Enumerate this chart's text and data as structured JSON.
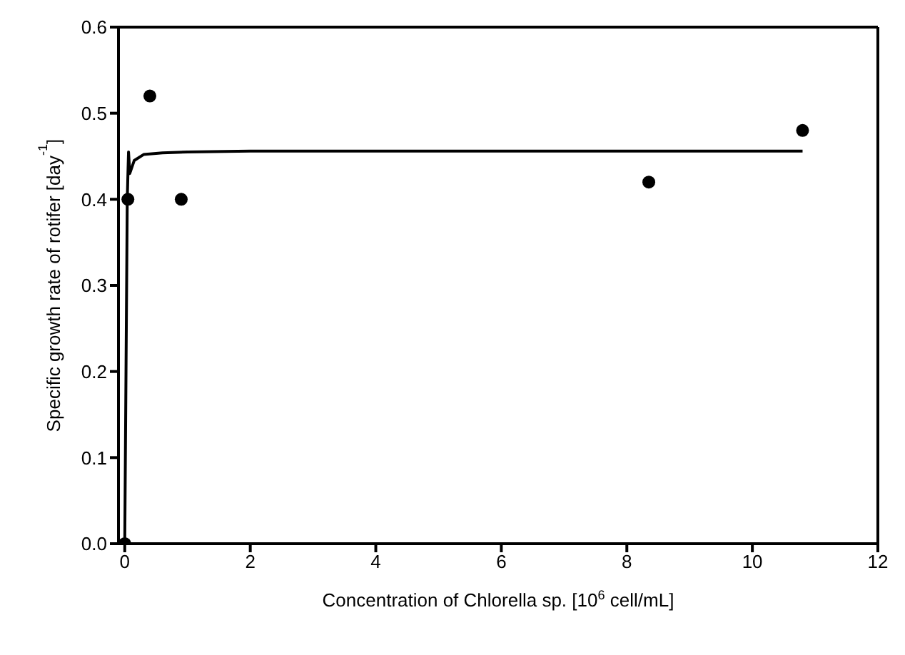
{
  "chart_data": {
    "type": "scatter",
    "xlabel": "Concentration of Chlorella sp. [10$^{6}$ cell/mL]",
    "ylabel": "Specific growth rate of rotifer [day$^{-1}$]",
    "xlim": [
      -0.1,
      12
    ],
    "xticks": [
      0,
      2,
      4,
      6,
      8,
      10,
      12
    ],
    "ylim": [
      0,
      0.6
    ],
    "yticks": [
      {
        "value": 0,
        "label": "0.0"
      },
      {
        "value": 0.1,
        "label": "0.1"
      },
      {
        "value": 0.2,
        "label": "0.2"
      },
      {
        "value": 0.3,
        "label": "0.3"
      },
      {
        "value": 0.4,
        "label": "0.4"
      },
      {
        "value": 0.5,
        "label": "0.5"
      },
      {
        "value": 0.6,
        "label": "0.6"
      }
    ],
    "legend": false,
    "series": [
      {
        "color": "#000000",
        "marker": "circle",
        "x": [
          0,
          0.05,
          0.4,
          0.9,
          8.35,
          10.8
        ],
        "values": [
          0,
          0.4,
          0.52,
          0.4,
          0.42,
          0.48
        ]
      },
      {
        "type": "line",
        "color": "#000000",
        "marker": "none",
        "line_style": "solid",
        "x": [
          0,
          0.02,
          0.04,
          0.06,
          0.08,
          0.15,
          0.3,
          0.6,
          1,
          2,
          5,
          10.8
        ],
        "values": [
          0,
          0.2,
          0.4,
          0.455,
          0.43,
          0.445,
          0.452,
          0.454,
          0.455,
          0.456,
          0.456,
          0.456
        ]
      }
    ]
  }
}
